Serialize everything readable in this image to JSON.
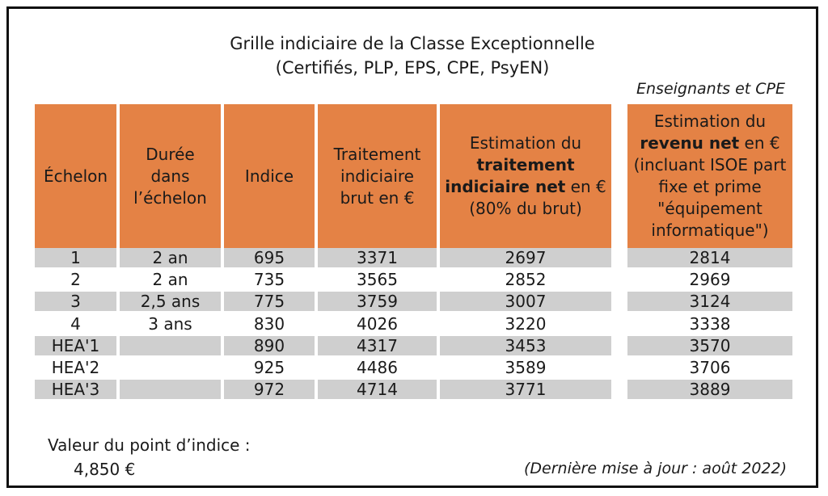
{
  "title_line1": "Grille indiciaire de la Classe Exceptionnelle",
  "title_line2": "(Certifiés, PLP, EPS, CPE, PsyEN)",
  "right_caption": "Enseignants et CPE",
  "headers": {
    "echelon": "Échelon",
    "duree": "Durée dans l’échelon",
    "indice": "Indice",
    "traitement_brut": "Traitement indiciaire brut en €",
    "traitement_net_pre": "Estimation du ",
    "traitement_net_bold": "traitement indiciaire net",
    "traitement_net_post": " en € (80% du brut)",
    "revenu_net_pre": "Estimation du ",
    "revenu_net_bold": "revenu net",
    "revenu_net_post": " en € (incluant ISOE part fixe et prime \"équipement informatique\")"
  },
  "rows": [
    {
      "echelon": "1",
      "duree": "2 an",
      "indice": "695",
      "brut": "3371",
      "net": "2697",
      "revenu": "2814"
    },
    {
      "echelon": "2",
      "duree": "2 an",
      "indice": "735",
      "brut": "3565",
      "net": "2852",
      "revenu": "2969"
    },
    {
      "echelon": "3",
      "duree": "2,5 ans",
      "indice": "775",
      "brut": "3759",
      "net": "3007",
      "revenu": "3124"
    },
    {
      "echelon": "4",
      "duree": "3 ans",
      "indice": "830",
      "brut": "4026",
      "net": "3220",
      "revenu": "3338"
    },
    {
      "echelon": "HEA'1",
      "duree": "",
      "indice": "890",
      "brut": "4317",
      "net": "3453",
      "revenu": "3570"
    },
    {
      "echelon": "HEA'2",
      "duree": "",
      "indice": "925",
      "brut": "4486",
      "net": "3589",
      "revenu": "3706"
    },
    {
      "echelon": "HEA'3",
      "duree": "",
      "indice": "972",
      "brut": "4714",
      "net": "3771",
      "revenu": "3889"
    }
  ],
  "footer": {
    "point_label": "Valeur du point d’indice :",
    "point_value": "4,850  €",
    "update": "(Dernière mise à jour : août 2022)"
  },
  "colors": {
    "header": "#e48245",
    "shade": "#cfcfcf"
  }
}
